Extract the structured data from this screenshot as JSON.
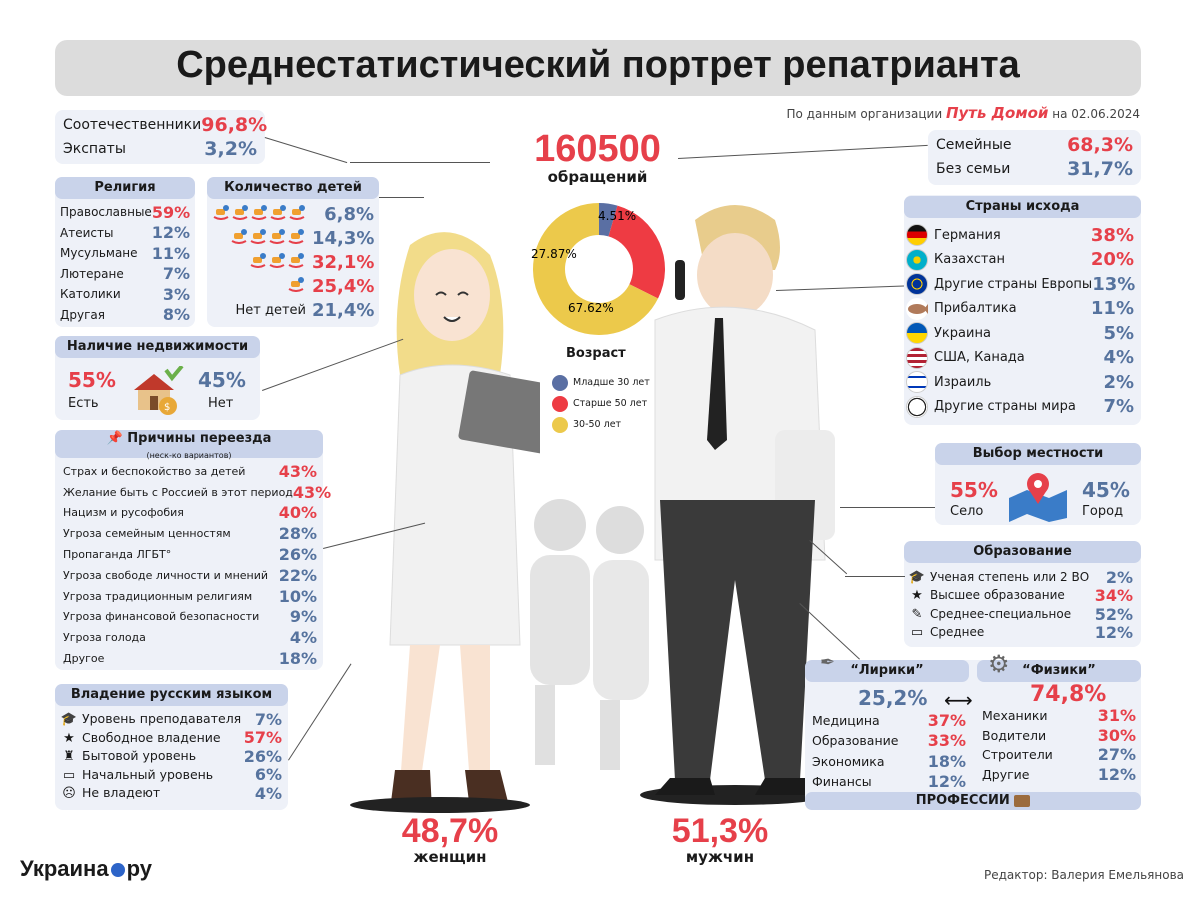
{
  "title": "Среднестатистический портрет репатрианта",
  "source": {
    "prefix": "По данным организации",
    "org": "Путь Домой",
    "date": "на 02.06.2024"
  },
  "total": {
    "value": "160500",
    "label": "обращений"
  },
  "compatriots": [
    {
      "label": "Соотечественники",
      "value": "96,8%",
      "color": "red"
    },
    {
      "label": "Экспаты",
      "value": "3,2%",
      "color": "blue"
    }
  ],
  "family": [
    {
      "label": "Семейные",
      "value": "68,3%",
      "color": "red"
    },
    {
      "label": "Без семьи",
      "value": "31,7%",
      "color": "blue"
    }
  ],
  "religion": {
    "title": "Религия",
    "items": [
      {
        "label": "Православные",
        "value": "59%",
        "color": "red"
      },
      {
        "label": "Атеисты",
        "value": "12%",
        "color": "blue"
      },
      {
        "label": "Мусульмане",
        "value": "11%",
        "color": "blue"
      },
      {
        "label": "Лютеране",
        "value": "7%",
        "color": "blue"
      },
      {
        "label": "Католики",
        "value": "3%",
        "color": "blue"
      },
      {
        "label": "Другая",
        "value": "8%",
        "color": "blue"
      }
    ]
  },
  "children": {
    "title": "Количество детей",
    "items": [
      {
        "horses": 5,
        "label": "",
        "value": "6,8%",
        "color": "blue"
      },
      {
        "horses": 4,
        "label": "",
        "value": "14,3%",
        "color": "blue"
      },
      {
        "horses": 3,
        "label": "",
        "value": "32,1%",
        "color": "red"
      },
      {
        "horses": 1,
        "label": "",
        "value": "25,4%",
        "color": "red"
      },
      {
        "horses": 0,
        "label": "Нет детей",
        "value": "21,4%",
        "color": "blue"
      }
    ]
  },
  "realty": {
    "title": "Наличие недвижимости",
    "yes": {
      "value": "55%",
      "label": "Есть"
    },
    "no": {
      "value": "45%",
      "label": "Нет"
    }
  },
  "reasons": {
    "title": "Причины переезда",
    "subtitle": "(неск-ко вариантов)",
    "items": [
      {
        "label": "Страх и беспокойство за детей",
        "value": "43%",
        "color": "red"
      },
      {
        "label": "Желание быть с Россией в этот период",
        "value": "43%",
        "color": "red"
      },
      {
        "label": "Нацизм и русофобия",
        "value": "40%",
        "color": "red"
      },
      {
        "label": "Угроза семейным ценностям",
        "value": "28%",
        "color": "blue"
      },
      {
        "label": "Пропаганда ЛГБТ°",
        "value": "26%",
        "color": "blue"
      },
      {
        "label": "Угроза свободе личности и мнений",
        "value": "22%",
        "color": "blue"
      },
      {
        "label": "Угроза традиционным религиям",
        "value": "10%",
        "color": "blue"
      },
      {
        "label": "Угроза финансовой безопасности",
        "value": "9%",
        "color": "blue"
      },
      {
        "label": "Угроза голода",
        "value": "4%",
        "color": "blue"
      },
      {
        "label": "Другое",
        "value": "18%",
        "color": "blue"
      }
    ]
  },
  "russian": {
    "title": "Владение русским языком",
    "items": [
      {
        "icon": "🎓",
        "icon_name": "graduation-cap-icon",
        "label": "Уровень преподавателя",
        "value": "7%",
        "color": "blue"
      },
      {
        "icon": "★",
        "icon_name": "star-icon",
        "label": "Свободное владение",
        "value": "57%",
        "color": "red"
      },
      {
        "icon": "♜",
        "icon_name": "home-icon",
        "label": "Бытовой уровень",
        "value": "26%",
        "color": "blue"
      },
      {
        "icon": "▭",
        "icon_name": "board-icon",
        "label": "Начальный уровень",
        "value": "6%",
        "color": "blue"
      },
      {
        "icon": "☹",
        "icon_name": "person-icon",
        "label": "Не владеют",
        "value": "4%",
        "color": "blue"
      }
    ]
  },
  "age": {
    "title": "Возраст",
    "slices": [
      {
        "label": "Младше 30 лет",
        "value": 4.51,
        "text": "4.51%",
        "color": "#5a6fa3"
      },
      {
        "label": "Старше 50 лет",
        "value": 27.87,
        "text": "27.87%",
        "color": "#ee3b43"
      },
      {
        "label": "30-50 лет",
        "value": 67.62,
        "text": "67.62%",
        "color": "#ecc94b"
      }
    ]
  },
  "countries": {
    "title": "Страны исхода",
    "items": [
      {
        "label": "Германия",
        "value": "38%",
        "color": "red",
        "icon_name": "germany-flag-icon",
        "flag": "linear-gradient(#111 0 33%,#dd0000 33% 66%,#ffce00 66%)"
      },
      {
        "label": "Казахстан",
        "value": "20%",
        "color": "red",
        "icon_name": "kazakhstan-flag-icon",
        "flag": "radial-gradient(circle,#f5d000 0 25%,#00afca 27%)"
      },
      {
        "label": "Другие страны Европы",
        "value": "13%",
        "color": "blue",
        "icon_name": "eu-flag-icon",
        "flag": "radial-gradient(circle,#003399 0 30%,#ffcc00 32% 38%,#003399 40%)"
      },
      {
        "label": "Прибалтика",
        "value": "11%",
        "color": "blue",
        "icon_name": "baltic-fish-icon",
        "flag": ""
      },
      {
        "label": "Украина",
        "value": "5%",
        "color": "blue",
        "icon_name": "ukraine-flag-icon",
        "flag": "linear-gradient(#0057b7 0 50%,#ffd700 50%)"
      },
      {
        "label": "США, Канада",
        "value": "4%",
        "color": "blue",
        "icon_name": "usa-canada-flag-icon",
        "flag": "repeating-linear-gradient(#b22234 0 3px,#fff 3px 6px)"
      },
      {
        "label": "Израиль",
        "value": "2%",
        "color": "blue",
        "icon_name": "israel-flag-icon",
        "flag": "linear-gradient(#fff 0 20%,#0038b8 20% 30%,#fff 30% 70%,#0038b8 70% 80%,#fff 80%)"
      },
      {
        "label": "Другие страны мира",
        "value": "7%",
        "color": "blue",
        "icon_name": "globe-icon",
        "flag": "radial-gradient(circle,#fff 0 55%,#222 57% 64%,#fff 66%)"
      }
    ]
  },
  "locality": {
    "title": "Выбор местности",
    "village": {
      "value": "55%",
      "label": "Село"
    },
    "city": {
      "value": "45%",
      "label": "Город"
    }
  },
  "education": {
    "title": "Образование",
    "items": [
      {
        "icon": "🎓",
        "icon_name": "graduation-cap-icon",
        "label": "Ученая степень или 2 ВО",
        "value": "2%",
        "color": "blue"
      },
      {
        "icon": "★",
        "icon_name": "star-icon",
        "label": "Высшее образование",
        "value": "34%",
        "color": "red"
      },
      {
        "icon": "✎",
        "icon_name": "hand-icon",
        "label": "Среднее-специальное",
        "value": "52%",
        "color": "blue"
      },
      {
        "icon": "▭",
        "icon_name": "board-icon",
        "label": "Среднее",
        "value": "12%",
        "color": "blue"
      }
    ]
  },
  "lyrics": {
    "title": "“Лирики”",
    "total": "25,2%",
    "items": [
      {
        "label": "Медицина",
        "value": "37%",
        "color": "red"
      },
      {
        "label": "Образование",
        "value": "33%",
        "color": "red"
      },
      {
        "label": "Экономика",
        "value": "18%",
        "color": "blue"
      },
      {
        "label": "Финансы",
        "value": "12%",
        "color": "blue"
      }
    ]
  },
  "physics": {
    "title": "“Физики”",
    "total": "74,8%",
    "items": [
      {
        "label": "Механики",
        "value": "31%",
        "color": "red"
      },
      {
        "label": "Водители",
        "value": "30%",
        "color": "red"
      },
      {
        "label": "Строители",
        "value": "27%",
        "color": "blue"
      },
      {
        "label": "Другие",
        "value": "12%",
        "color": "blue"
      }
    ]
  },
  "professions_label": "ПРОФЕССИИ",
  "gender": {
    "women": {
      "value": "48,7%",
      "label": "женщин"
    },
    "men": {
      "value": "51,3%",
      "label": "мужчин"
    }
  },
  "brand": {
    "name": "Украина",
    "suffix": "ру"
  },
  "editor": "Редактор: Валерия Емельянова",
  "colors": {
    "red": "#e6404a",
    "blue": "#56739e",
    "panel": "#eef1f8",
    "header": "#c9d3ea"
  }
}
